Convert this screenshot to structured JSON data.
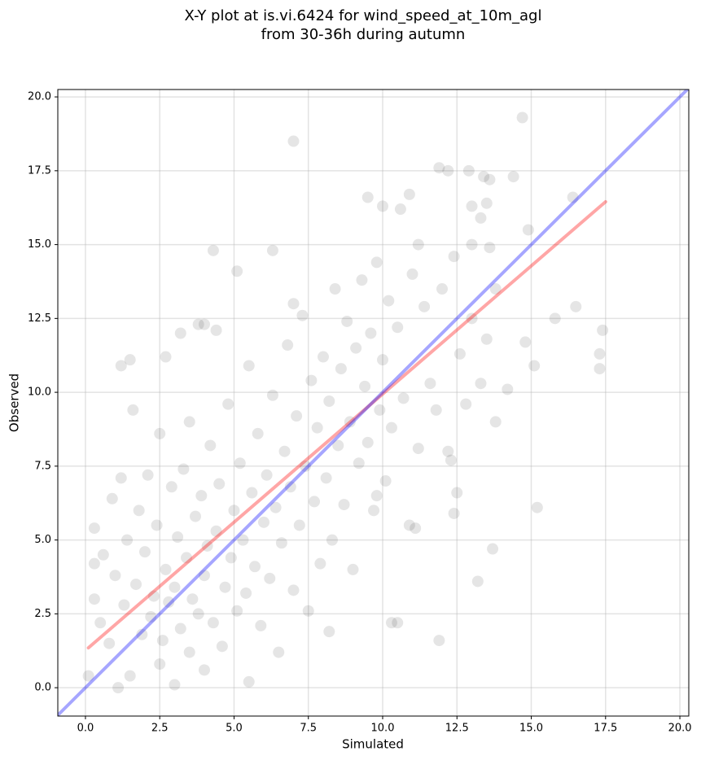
{
  "chart_data": {
    "type": "scatter",
    "title": [
      "X-Y plot at is.vi.6424 for wind_speed_at_10m_agl",
      "from 30-36h during autumn"
    ],
    "x_label": "Simulated",
    "y_label": "Observed",
    "xlim": [
      -0.93,
      20.3
    ],
    "ylim": [
      -0.96,
      20.25
    ],
    "xticks": [
      {
        "value": 0,
        "label": "0.0"
      },
      2.5,
      {
        "value": 5,
        "label": "5.0"
      },
      7.5,
      {
        "value": 10,
        "label": "10.0"
      },
      12.5,
      {
        "value": 15,
        "label": "15.0"
      },
      17.5,
      {
        "value": 20,
        "label": "20.0"
      }
    ],
    "yticks": [
      {
        "value": 0,
        "label": "0.0"
      },
      2.5,
      {
        "value": 5,
        "label": "5.0"
      },
      7.5,
      {
        "value": 10,
        "label": "10.0"
      },
      12.5,
      {
        "value": 15,
        "label": "15.0"
      },
      17.5,
      {
        "value": 20,
        "label": "20.0"
      }
    ],
    "grid": true,
    "color": "#000000",
    "alpha": 0.1,
    "x": [
      14.7,
      7.0,
      11.9,
      12.2,
      12.9,
      13.4,
      13.6,
      14.4,
      16.4,
      9.5,
      10.9,
      10.0,
      10.6,
      13.5,
      13.3,
      14.9,
      13.0,
      13.6,
      13.0,
      11.2,
      16.5,
      15.8,
      17.4,
      17.3,
      17.3,
      15.1,
      14.8,
      14.2,
      13.8,
      15.2,
      13.7,
      13.2,
      12.5,
      12.4,
      11.9,
      10.5,
      10.3,
      8.2,
      4.3,
      5.1,
      6.3,
      7.0,
      1.5,
      1.2,
      2.7,
      3.2,
      3.8,
      4.0,
      4.4,
      0.3,
      0.1,
      0.3,
      1.1,
      0.3,
      0.5,
      0.6,
      0.8,
      0.9,
      1.0,
      1.2,
      1.3,
      1.4,
      1.5,
      1.6,
      1.7,
      1.8,
      1.9,
      2.0,
      2.1,
      2.2,
      2.3,
      2.4,
      2.5,
      2.5,
      2.6,
      2.7,
      2.8,
      2.9,
      3.0,
      3.0,
      3.1,
      3.2,
      3.3,
      3.4,
      3.5,
      3.5,
      3.6,
      3.7,
      3.8,
      3.9,
      4.0,
      4.0,
      4.1,
      4.2,
      4.3,
      4.4,
      4.5,
      4.6,
      4.7,
      4.8,
      4.9,
      5.0,
      5.1,
      5.2,
      5.3,
      5.4,
      5.5,
      5.5,
      5.6,
      5.7,
      5.8,
      5.9,
      6.0,
      6.1,
      6.2,
      6.3,
      6.4,
      6.5,
      6.6,
      6.7,
      6.8,
      6.9,
      7.0,
      7.1,
      7.2,
      7.3,
      7.4,
      7.5,
      7.6,
      7.7,
      7.8,
      7.9,
      8.0,
      8.1,
      8.2,
      8.3,
      8.4,
      8.5,
      8.6,
      8.7,
      8.8,
      8.9,
      9.0,
      9.1,
      9.2,
      9.3,
      9.4,
      9.5,
      9.6,
      9.7,
      9.8,
      9.9,
      10.0,
      10.1,
      10.2,
      10.3,
      10.5,
      10.7,
      10.9,
      11.0,
      11.2,
      11.4,
      11.6,
      11.8,
      12.0,
      12.2,
      12.4,
      12.6,
      12.8,
      13.0,
      13.3,
      13.5,
      13.8,
      12.3,
      11.1,
      9.8
    ],
    "values": [
      19.3,
      18.5,
      17.6,
      17.5,
      17.5,
      17.3,
      17.2,
      17.3,
      16.6,
      16.6,
      16.7,
      16.3,
      16.2,
      16.4,
      15.9,
      15.5,
      16.3,
      14.9,
      15.0,
      15.0,
      12.9,
      12.5,
      12.1,
      11.3,
      10.8,
      10.9,
      11.7,
      10.1,
      9.0,
      6.1,
      4.7,
      3.6,
      6.6,
      5.9,
      1.6,
      2.2,
      2.2,
      1.9,
      14.8,
      14.1,
      14.8,
      13.0,
      11.1,
      10.9,
      11.2,
      12.0,
      12.3,
      12.3,
      12.1,
      5.4,
      0.4,
      4.2,
      0.0,
      3.0,
      2.2,
      4.5,
      1.5,
      6.4,
      3.8,
      7.1,
      2.8,
      5.0,
      0.4,
      9.4,
      3.5,
      6.0,
      1.8,
      4.6,
      7.2,
      2.4,
      3.1,
      5.5,
      0.8,
      8.6,
      1.6,
      4.0,
      2.9,
      6.8,
      0.1,
      3.4,
      5.1,
      2.0,
      7.4,
      4.4,
      1.2,
      9.0,
      3.0,
      5.8,
      2.5,
      6.5,
      0.6,
      3.8,
      4.8,
      8.2,
      2.2,
      5.3,
      6.9,
      1.4,
      3.4,
      9.6,
      4.4,
      6.0,
      2.6,
      7.6,
      5.0,
      3.2,
      10.9,
      0.2,
      6.6,
      4.1,
      8.6,
      2.1,
      5.6,
      7.2,
      3.7,
      9.9,
      6.1,
      1.2,
      4.9,
      8.0,
      11.6,
      6.8,
      3.3,
      9.2,
      5.5,
      12.6,
      7.5,
      2.6,
      10.4,
      6.3,
      8.8,
      4.2,
      11.2,
      7.1,
      9.7,
      5.0,
      13.5,
      8.2,
      10.8,
      6.2,
      12.4,
      9.0,
      4.0,
      11.5,
      7.6,
      13.8,
      10.2,
      8.3,
      12.0,
      6.0,
      14.4,
      9.4,
      11.1,
      7.0,
      13.1,
      8.8,
      12.2,
      9.8,
      5.5,
      14.0,
      8.1,
      12.9,
      10.3,
      9.4,
      13.5,
      8.0,
      14.6,
      11.3,
      9.6,
      12.5,
      10.3,
      11.8,
      13.5,
      7.7,
      5.4,
      6.5
    ],
    "lines": [
      {
        "color": "#ff0000",
        "x": [
          0.1,
          17.5
        ],
        "values": [
          1.35,
          16.45
        ]
      },
      {
        "color": "#0000ff",
        "x": [
          -0.93,
          20.3
        ],
        "values": [
          -0.93,
          20.3
        ]
      }
    ]
  }
}
